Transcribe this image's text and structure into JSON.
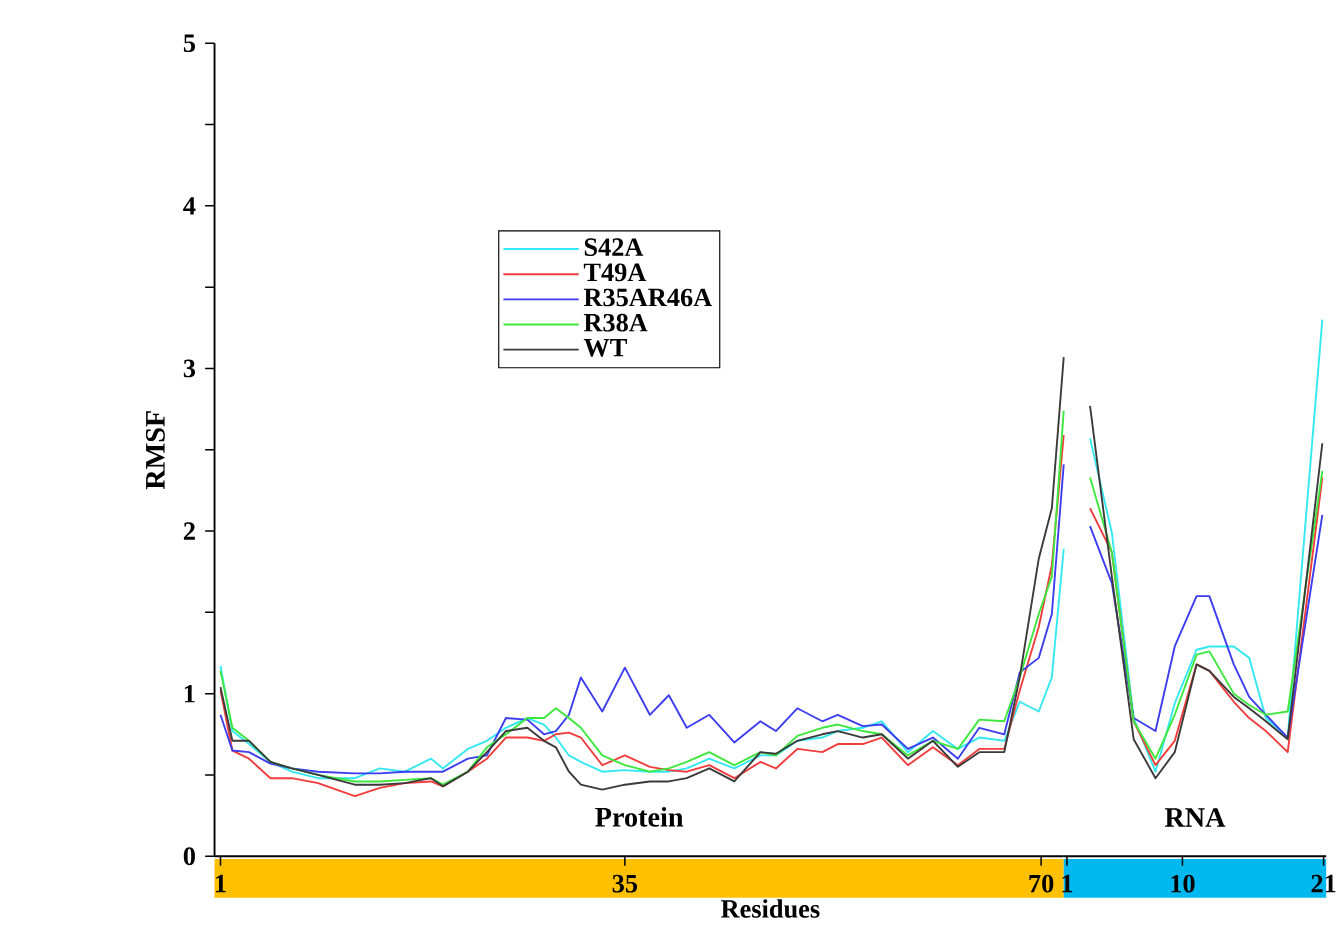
{
  "chart_data": [
    {
      "type": "line",
      "xlabel": "Residues",
      "ylabel": "RMSF",
      "annotations": [
        "Protein"
      ],
      "x": [
        1,
        2,
        3.4,
        5.2,
        7,
        9.2,
        12.3,
        14.4,
        16.5,
        18.7,
        19.7,
        21.8,
        23.4,
        25,
        26.8,
        28.2,
        29.2,
        30.3,
        31.3,
        33.1,
        35,
        37.1,
        38.7,
        40.2,
        42.1,
        44.2,
        46.4,
        47.7,
        49.5,
        51.6,
        52.9,
        55,
        56.6,
        58.8,
        60.9,
        63,
        64.8,
        66.9,
        68.2,
        69.8,
        70.9,
        71.9
      ],
      "series": [
        {
          "name": "S42A",
          "color": "#33e8f0",
          "values": [
            1.17,
            0.77,
            0.69,
            0.58,
            0.52,
            0.48,
            0.48,
            0.54,
            0.52,
            0.6,
            0.54,
            0.66,
            0.71,
            0.79,
            0.85,
            0.81,
            0.73,
            0.62,
            0.58,
            0.52,
            0.53,
            0.52,
            0.52,
            0.54,
            0.6,
            0.54,
            0.62,
            0.62,
            0.71,
            0.73,
            0.77,
            0.79,
            0.83,
            0.64,
            0.77,
            0.66,
            0.73,
            0.71,
            0.95,
            0.89,
            1.1,
            1.89
          ]
        },
        {
          "name": "T49A",
          "color": "#f23c3c",
          "values": [
            1.02,
            0.65,
            0.6,
            0.48,
            0.48,
            0.45,
            0.37,
            0.42,
            0.45,
            0.46,
            0.43,
            0.52,
            0.6,
            0.73,
            0.73,
            0.71,
            0.75,
            0.76,
            0.73,
            0.56,
            0.62,
            0.55,
            0.53,
            0.52,
            0.56,
            0.48,
            0.58,
            0.54,
            0.66,
            0.64,
            0.69,
            0.69,
            0.73,
            0.56,
            0.67,
            0.56,
            0.66,
            0.66,
            1.02,
            1.41,
            1.79,
            2.59
          ]
        },
        {
          "name": "R35AR46A",
          "color": "#3c3cf0",
          "values": [
            0.87,
            0.65,
            0.64,
            0.57,
            0.54,
            0.52,
            0.51,
            0.51,
            0.52,
            0.52,
            0.52,
            0.6,
            0.62,
            0.85,
            0.84,
            0.75,
            0.77,
            0.87,
            1.1,
            0.89,
            1.16,
            0.87,
            0.99,
            0.79,
            0.87,
            0.7,
            0.83,
            0.77,
            0.91,
            0.83,
            0.87,
            0.8,
            0.81,
            0.66,
            0.73,
            0.6,
            0.79,
            0.75,
            1.13,
            1.22,
            1.49,
            2.41
          ]
        },
        {
          "name": "R38A",
          "color": "#3ce83c",
          "values": [
            1.14,
            0.79,
            0.71,
            0.58,
            0.54,
            0.5,
            0.46,
            0.46,
            0.47,
            0.48,
            0.44,
            0.52,
            0.67,
            0.75,
            0.85,
            0.85,
            0.91,
            0.85,
            0.79,
            0.62,
            0.56,
            0.52,
            0.54,
            0.58,
            0.64,
            0.56,
            0.64,
            0.62,
            0.74,
            0.79,
            0.81,
            0.77,
            0.75,
            0.62,
            0.71,
            0.66,
            0.84,
            0.83,
            1.1,
            1.49,
            1.72,
            2.74
          ]
        },
        {
          "name": "WT",
          "color": "#3a3a3a",
          "values": [
            1.04,
            0.71,
            0.71,
            0.58,
            0.54,
            0.5,
            0.44,
            0.44,
            0.45,
            0.48,
            0.43,
            0.52,
            0.64,
            0.77,
            0.79,
            0.71,
            0.67,
            0.52,
            0.44,
            0.41,
            0.44,
            0.46,
            0.46,
            0.48,
            0.54,
            0.46,
            0.64,
            0.63,
            0.71,
            0.75,
            0.77,
            0.73,
            0.75,
            0.6,
            0.71,
            0.55,
            0.64,
            0.64,
            1.1,
            1.83,
            2.14,
            3.07
          ]
        }
      ],
      "xlim": [
        0.5,
        71.9
      ],
      "xticks": [
        1,
        35,
        70
      ],
      "ylim": [
        0,
        5
      ],
      "yticks": [
        0,
        {
          "value": 0.5,
          "label": null
        },
        1,
        {
          "value": 1.5,
          "label": null
        },
        2,
        {
          "value": 2.5,
          "label": null
        },
        3,
        {
          "value": 3.5,
          "label": null
        },
        4,
        {
          "value": 4.5,
          "label": null
        },
        5
      ],
      "legend": "top left"
    },
    {
      "type": "line",
      "annotations": [
        "RNA"
      ],
      "x": [
        2.8,
        4.5,
        6.2,
        7.9,
        9.4,
        11.1,
        12.1,
        14,
        15.2,
        16.5,
        18.2,
        20.9
      ],
      "series": [
        {
          "color": "#33e8f0",
          "values": [
            2.57,
            1.99,
            0.85,
            0.52,
            0.94,
            1.27,
            1.29,
            1.29,
            1.22,
            0.85,
            0.73,
            3.3
          ]
        },
        {
          "color": "#f23c3c",
          "values": [
            2.14,
            1.87,
            0.83,
            0.56,
            0.71,
            1.18,
            1.14,
            0.95,
            0.85,
            0.77,
            0.64,
            2.33
          ]
        },
        {
          "color": "#3c3cf0",
          "values": [
            2.03,
            1.68,
            0.85,
            0.77,
            1.29,
            1.6,
            1.6,
            1.18,
            0.98,
            0.87,
            0.73,
            2.1
          ]
        },
        {
          "color": "#3ce83c",
          "values": [
            2.33,
            1.87,
            0.83,
            0.6,
            0.87,
            1.24,
            1.26,
            1.0,
            0.93,
            0.87,
            0.89,
            2.37
          ]
        },
        {
          "color": "#3a3a3a",
          "values": [
            2.77,
            1.72,
            0.72,
            0.48,
            0.64,
            1.18,
            1.14,
            0.98,
            0.91,
            0.83,
            0.72,
            2.54
          ]
        }
      ],
      "xlim": [
        0.75,
        21.2
      ],
      "xticks": [
        1,
        10,
        21
      ],
      "ylim": [
        0,
        5
      ],
      "tick_labels": "x"
    }
  ]
}
